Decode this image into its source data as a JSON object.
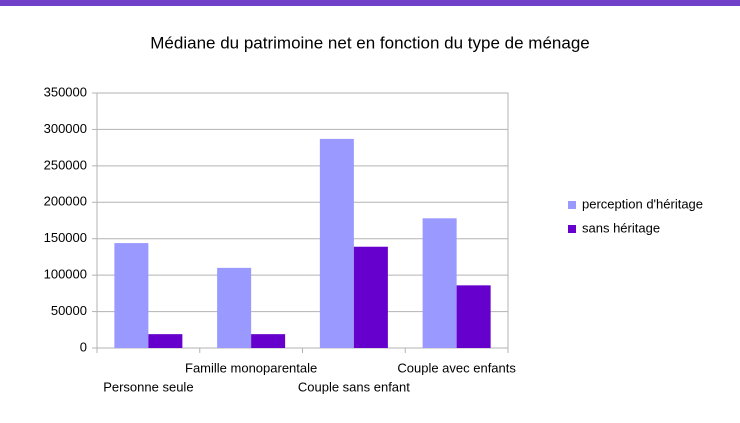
{
  "chart_data": {
    "type": "bar",
    "title": "Médiane du patrimoine net en fonction du type de ménage",
    "categories": [
      "Personne seule",
      "Famille monoparentale",
      "Couple sans enfant",
      "Couple avec enfants"
    ],
    "series": [
      {
        "name": "perception d'héritage",
        "color": "#9999ff",
        "values": [
          144000,
          110000,
          287000,
          178000
        ]
      },
      {
        "name": "sans héritage",
        "color": "#6600cc",
        "values": [
          19000,
          19000,
          139000,
          86000
        ]
      }
    ],
    "ylim": [
      0,
      350000
    ],
    "yticks": [
      0,
      50000,
      100000,
      150000,
      200000,
      250000,
      300000,
      350000
    ],
    "grid": true,
    "legend": "right"
  }
}
